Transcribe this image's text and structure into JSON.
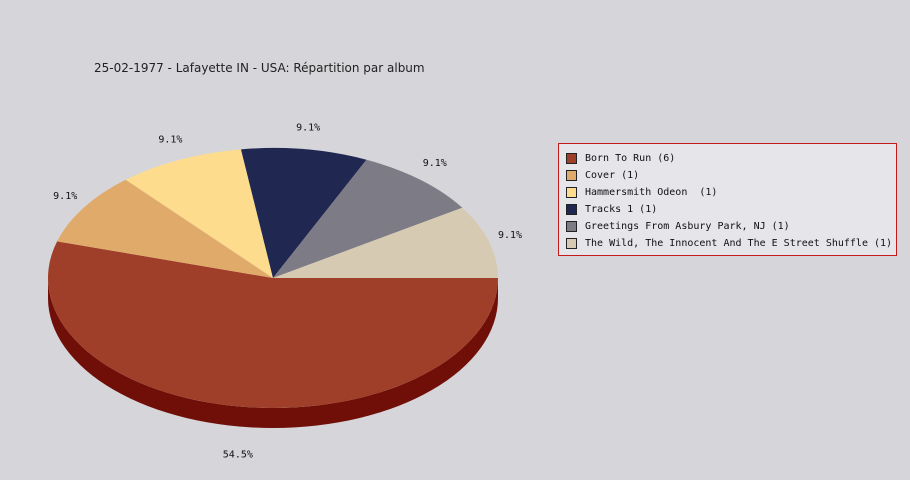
{
  "chart_data": {
    "type": "pie",
    "title": "25-02-1977 - Lafayette IN - USA:  Répartition par album",
    "slices": [
      {
        "label": "Born To Run (6)",
        "value": 6,
        "percent_label": "54.5%",
        "color": "#a03f29",
        "side_color": "#700e08"
      },
      {
        "label": "Cover (1)",
        "value": 1,
        "percent_label": "9.1%",
        "color": "#e0aa6b",
        "side_color": "#b07a3b"
      },
      {
        "label": "Hammersmith Odeon  (1)",
        "value": 1,
        "percent_label": "9.1%",
        "color": "#fddc8d",
        "side_color": "#cdac5d"
      },
      {
        "label": "Tracks 1 (1)",
        "value": 1,
        "percent_label": "9.1%",
        "color": "#202852",
        "side_color": "#101830"
      },
      {
        "label": "Greetings From Asbury Park, NJ (1)",
        "value": 1,
        "percent_label": "9.1%",
        "color": "#7d7b85",
        "side_color": "#4d4b55"
      },
      {
        "label": "The Wild, The Innocent And The E Street Shuffle (1)",
        "value": 1,
        "percent_label": "9.1%",
        "color": "#d6cbb2",
        "side_color": "#a69b82"
      }
    ],
    "legend_position": "right"
  }
}
